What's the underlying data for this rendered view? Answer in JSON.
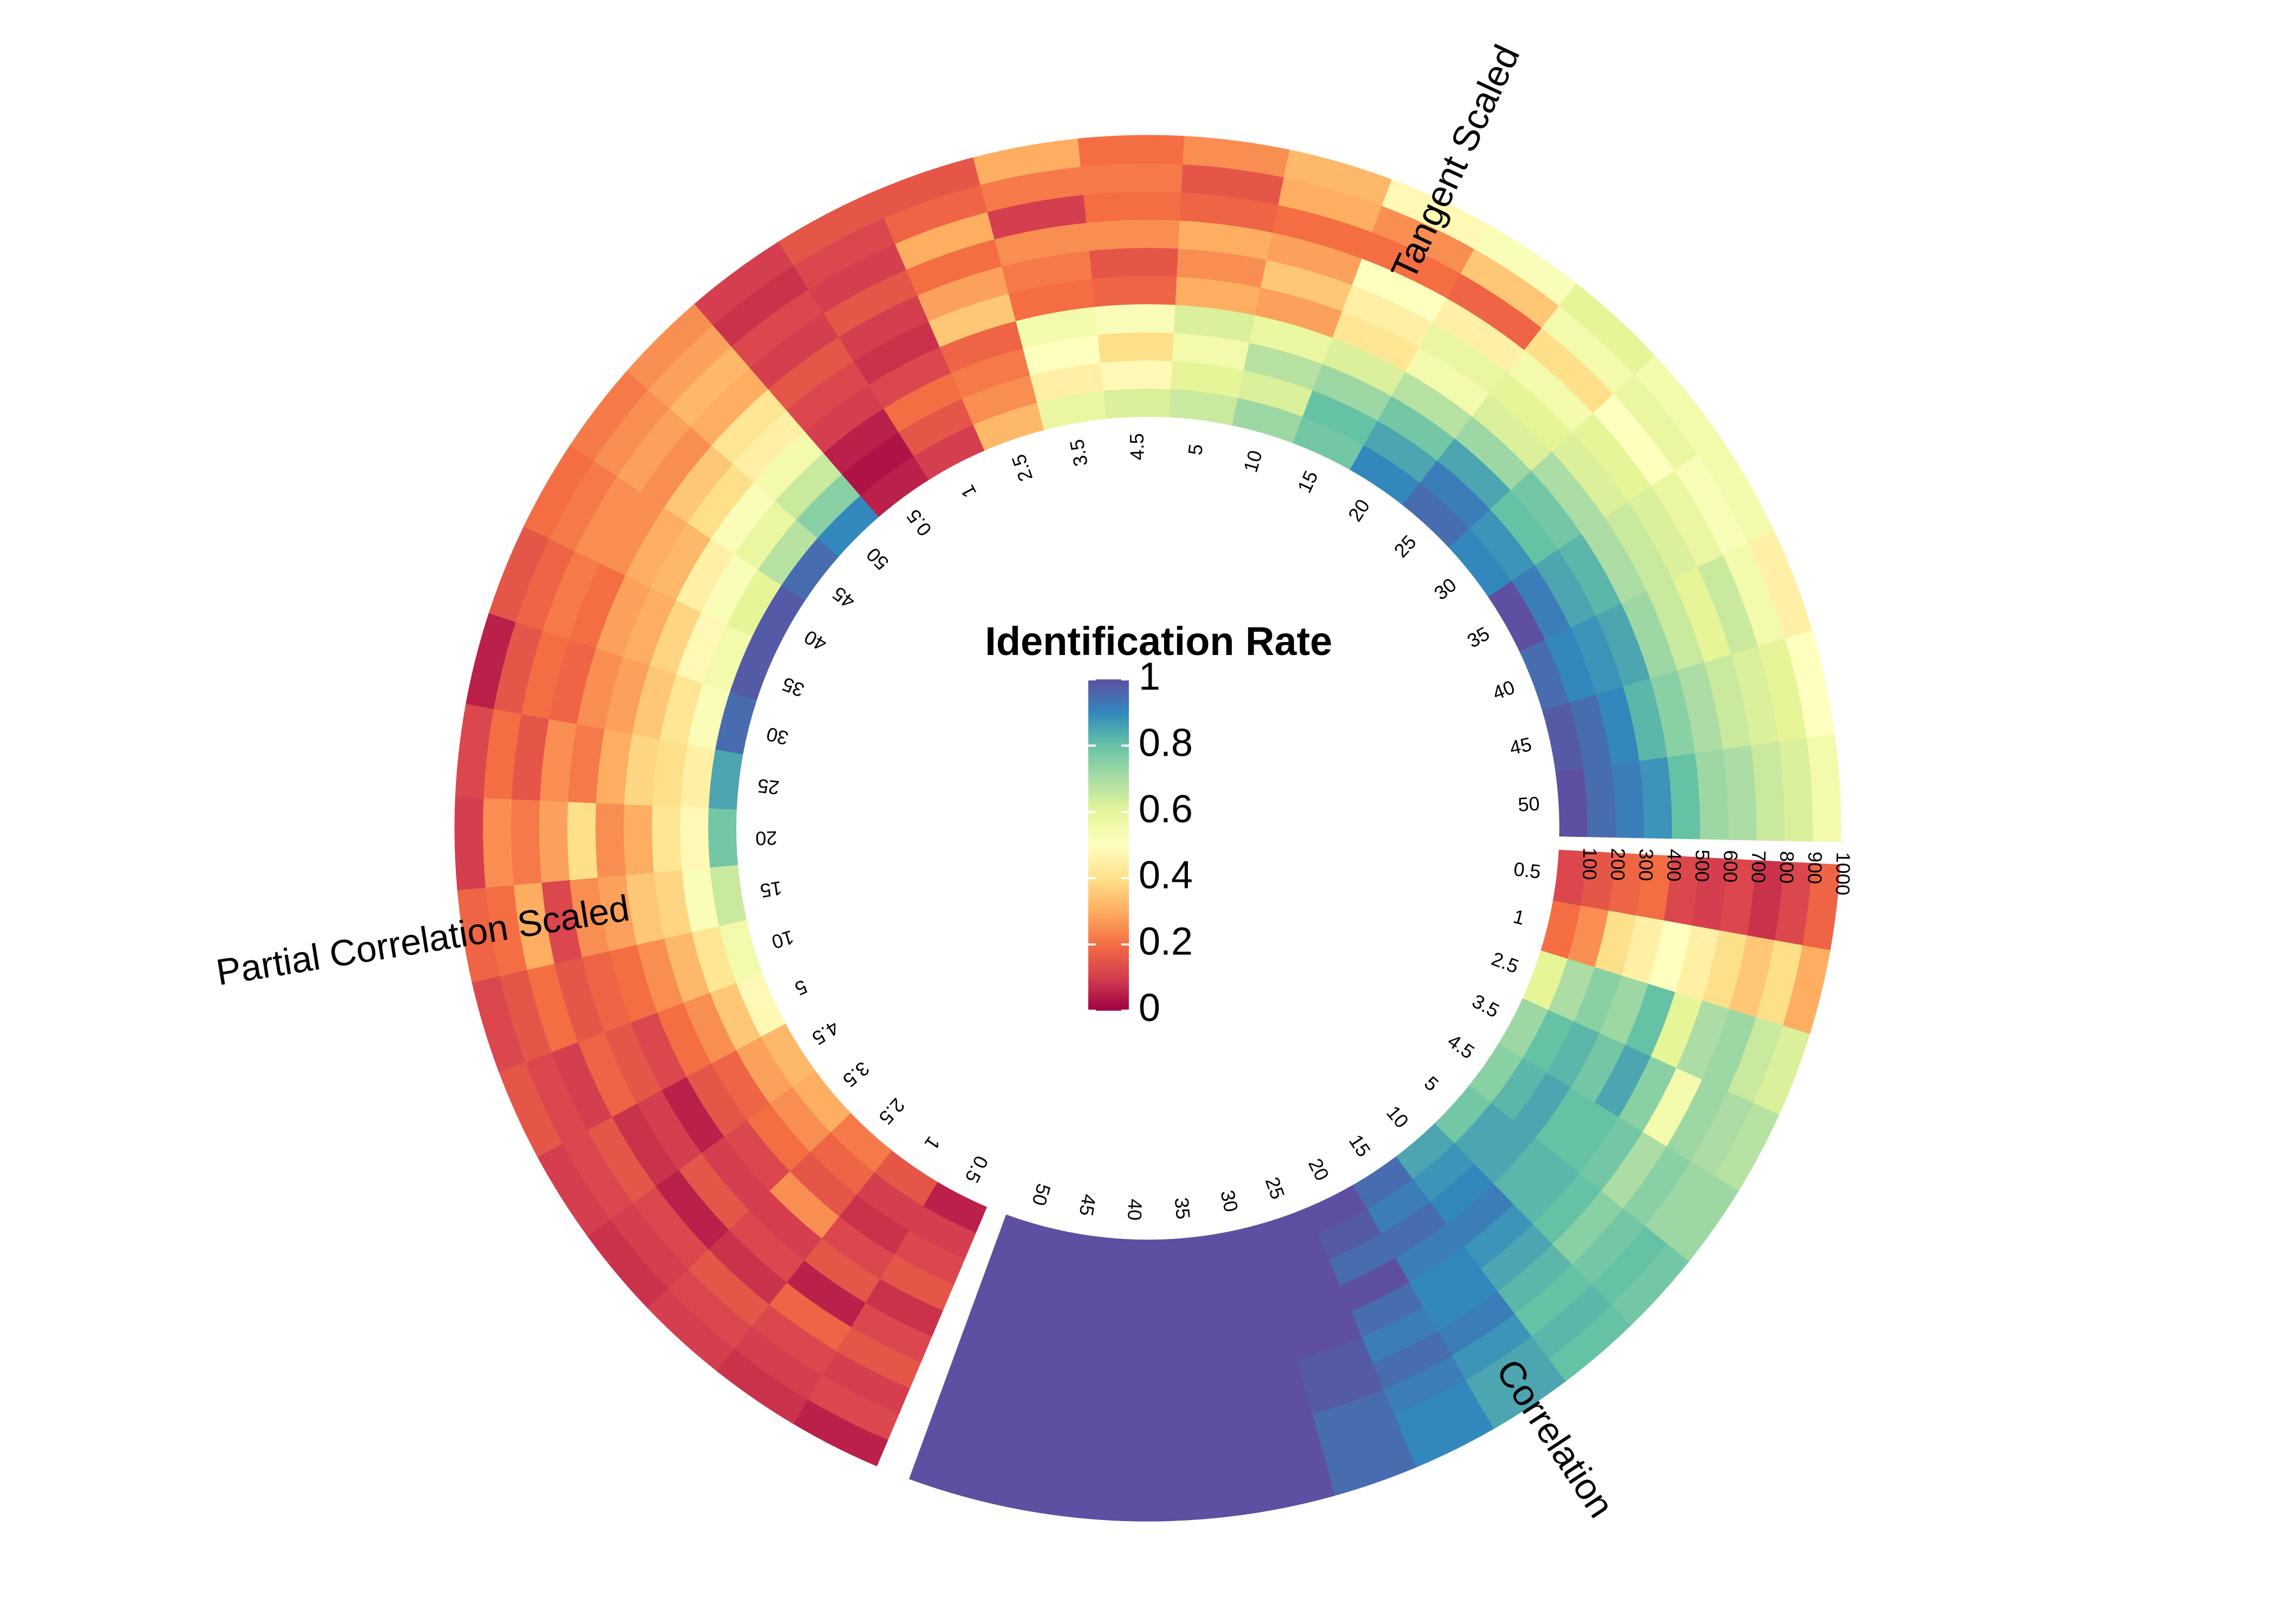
{
  "chart_data": {
    "type": "heatmap",
    "layout": "circular",
    "colorbar": {
      "title": "Identification Rate",
      "ticks": [
        "0",
        "0.2",
        "0.4",
        "0.6",
        "0.8",
        "1"
      ],
      "range": [
        0,
        1
      ],
      "colormap": [
        "#9e0142",
        "#d53e4f",
        "#f46d43",
        "#fdae61",
        "#fee08b",
        "#ffffbf",
        "#e6f598",
        "#abdda4",
        "#66c2a5",
        "#3288bd",
        "#5e4fa2"
      ]
    },
    "angular_categories": [
      "0.5",
      "1",
      "2.5",
      "3.5",
      "4.5",
      "5",
      "10",
      "15",
      "20",
      "25",
      "30",
      "35",
      "40",
      "45",
      "50"
    ],
    "radial_categories": [
      "100",
      "200",
      "300",
      "400",
      "500",
      "600",
      "700",
      "800",
      "900",
      "1000"
    ],
    "panels": [
      {
        "name": "Tangent Scaled",
        "values": [
          [
            0.05,
            0.03,
            0.05,
            0.1,
            0.12,
            0.15,
            0.1,
            0.12,
            0.08,
            0.1
          ],
          [
            0.1,
            0.15,
            0.2,
            0.12,
            0.08,
            0.1,
            0.15,
            0.1,
            0.12,
            0.15
          ],
          [
            0.32,
            0.25,
            0.22,
            0.18,
            0.35,
            0.28,
            0.2,
            0.3,
            0.18,
            0.15
          ],
          [
            0.58,
            0.45,
            0.5,
            0.55,
            0.2,
            0.22,
            0.25,
            0.1,
            0.22,
            0.3
          ],
          [
            0.62,
            0.48,
            0.4,
            0.52,
            0.18,
            0.15,
            0.25,
            0.2,
            0.22,
            0.2
          ],
          [
            0.65,
            0.6,
            0.55,
            0.62,
            0.3,
            0.25,
            0.3,
            0.18,
            0.15,
            0.25
          ],
          [
            0.72,
            0.62,
            0.68,
            0.58,
            0.28,
            0.35,
            0.28,
            0.2,
            0.3,
            0.32
          ],
          [
            0.78,
            0.8,
            0.72,
            0.62,
            0.42,
            0.45,
            0.5,
            0.2,
            0.25,
            0.48
          ],
          [
            0.9,
            0.85,
            0.78,
            0.68,
            0.55,
            0.58,
            0.45,
            0.18,
            0.35,
            0.52
          ],
          [
            0.95,
            0.92,
            0.85,
            0.72,
            0.62,
            0.6,
            0.55,
            0.4,
            0.55,
            0.6
          ],
          [
            0.9,
            0.88,
            0.8,
            0.78,
            0.7,
            0.62,
            0.6,
            0.5,
            0.58,
            0.55
          ],
          [
            1.0,
            0.92,
            0.85,
            0.82,
            0.7,
            0.65,
            0.62,
            0.58,
            0.52,
            0.55
          ],
          [
            0.95,
            0.9,
            0.88,
            0.85,
            0.72,
            0.65,
            0.6,
            0.65,
            0.55,
            0.45
          ],
          [
            0.98,
            0.95,
            0.9,
            0.82,
            0.75,
            0.7,
            0.65,
            0.62,
            0.6,
            0.5
          ],
          [
            1.0,
            0.95,
            0.92,
            0.88,
            0.8,
            0.72,
            0.7,
            0.65,
            0.62,
            0.55
          ]
        ]
      },
      {
        "name": "Correlation",
        "values": [
          [
            0.12,
            0.15,
            0.18,
            0.2,
            0.12,
            0.1,
            0.12,
            0.08,
            0.12,
            0.18
          ],
          [
            0.2,
            0.25,
            0.4,
            0.45,
            0.5,
            0.45,
            0.4,
            0.35,
            0.4,
            0.3
          ],
          [
            0.6,
            0.7,
            0.75,
            0.72,
            0.8,
            0.6,
            0.7,
            0.72,
            0.65,
            0.62
          ],
          [
            0.72,
            0.8,
            0.82,
            0.78,
            0.85,
            0.75,
            0.55,
            0.72,
            0.7,
            0.68
          ],
          [
            0.75,
            0.82,
            0.85,
            0.8,
            0.8,
            0.78,
            0.7,
            0.75,
            0.72,
            0.72
          ],
          [
            0.78,
            0.85,
            0.85,
            0.82,
            0.82,
            0.8,
            0.75,
            0.78,
            0.8,
            0.78
          ],
          [
            0.85,
            0.88,
            0.9,
            0.92,
            0.88,
            0.85,
            0.82,
            0.8,
            0.82,
            0.8
          ],
          [
            0.95,
            0.92,
            0.95,
            0.92,
            0.9,
            0.9,
            0.92,
            0.88,
            0.85,
            0.85
          ],
          [
            1.0,
            0.98,
            0.95,
            1.0,
            0.95,
            0.92,
            0.95,
            0.92,
            0.9,
            0.9
          ],
          [
            1.0,
            1.0,
            1.0,
            1.0,
            1.0,
            0.98,
            0.98,
            0.95,
            0.95,
            0.95
          ],
          [
            1.0,
            1.0,
            1.0,
            1.0,
            1.0,
            1.0,
            1.0,
            1.0,
            1.0,
            1.0
          ],
          [
            1.0,
            1.0,
            1.0,
            1.0,
            1.0,
            1.0,
            1.0,
            1.0,
            1.0,
            1.0
          ],
          [
            1.0,
            1.0,
            1.0,
            1.0,
            1.0,
            1.0,
            1.0,
            1.0,
            1.0,
            1.0
          ],
          [
            1.0,
            1.0,
            1.0,
            1.0,
            1.0,
            1.0,
            1.0,
            1.0,
            1.0,
            1.0
          ],
          [
            1.0,
            1.0,
            1.0,
            1.0,
            1.0,
            1.0,
            1.0,
            1.0,
            1.0,
            1.0
          ]
        ]
      },
      {
        "name": "Partial Correlation Scaled",
        "values": [
          [
            0.05,
            0.1,
            0.12,
            0.15,
            0.08,
            0.12,
            0.15,
            0.1,
            0.12,
            0.05
          ],
          [
            0.15,
            0.1,
            0.08,
            0.12,
            0.15,
            0.05,
            0.18,
            0.12,
            0.1,
            0.08
          ],
          [
            0.22,
            0.18,
            0.15,
            0.25,
            0.1,
            0.12,
            0.08,
            0.15,
            0.12,
            0.1
          ],
          [
            0.3,
            0.25,
            0.2,
            0.12,
            0.1,
            0.15,
            0.05,
            0.12,
            0.1,
            0.08
          ],
          [
            0.32,
            0.28,
            0.18,
            0.15,
            0.05,
            0.1,
            0.08,
            0.15,
            0.12,
            0.1
          ],
          [
            0.48,
            0.35,
            0.25,
            0.2,
            0.12,
            0.15,
            0.18,
            0.1,
            0.12,
            0.15
          ],
          [
            0.55,
            0.42,
            0.32,
            0.25,
            0.2,
            0.18,
            0.15,
            0.2,
            0.15,
            0.12
          ],
          [
            0.65,
            0.52,
            0.38,
            0.35,
            0.28,
            0.25,
            0.12,
            0.3,
            0.2,
            0.18
          ],
          [
            0.78,
            0.48,
            0.42,
            0.3,
            0.25,
            0.4,
            0.28,
            0.22,
            0.25,
            0.1
          ],
          [
            0.85,
            0.45,
            0.4,
            0.38,
            0.3,
            0.22,
            0.25,
            0.15,
            0.2,
            0.12
          ],
          [
            0.95,
            0.52,
            0.42,
            0.35,
            0.28,
            0.25,
            0.18,
            0.2,
            0.15,
            0.05
          ],
          [
            0.98,
            0.55,
            0.48,
            0.38,
            0.3,
            0.28,
            0.2,
            0.22,
            0.18,
            0.15
          ],
          [
            0.98,
            0.6,
            0.52,
            0.45,
            0.32,
            0.3,
            0.25,
            0.25,
            0.22,
            0.2
          ],
          [
            0.95,
            0.68,
            0.58,
            0.52,
            0.4,
            0.35,
            0.25,
            0.28,
            0.25,
            0.22
          ],
          [
            0.9,
            0.75,
            0.65,
            0.55,
            0.45,
            0.42,
            0.3,
            0.32,
            0.28,
            0.25
          ]
        ]
      }
    ],
    "grid": false,
    "legend": "center"
  }
}
